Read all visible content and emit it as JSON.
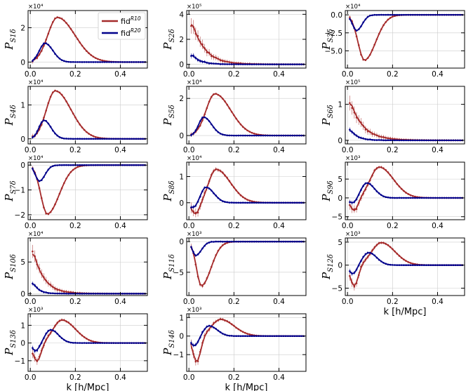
{
  "figure": {
    "xlabel": "k [h/Mpc]",
    "legend": {
      "placement": "top-right of first panel",
      "entries": [
        {
          "name": "fid",
          "sup": "R10",
          "color": "#a52a2a"
        },
        {
          "name": "fid",
          "sup": "R20",
          "color": "#00008b"
        }
      ]
    }
  },
  "chart_data": [
    {
      "type": "line",
      "id": "S1",
      "title": "",
      "ylabel_main": "P",
      "ylabel_sub": "S1δ",
      "exponent": "×10⁴",
      "xlim": [
        -0.01,
        0.52
      ],
      "ylim": [
        -0.35,
        3.0
      ],
      "xticks": [
        0.0,
        0.2,
        0.4
      ],
      "yticks": [
        0,
        2
      ],
      "xticklabels": [
        "0.0",
        "0.2",
        "0.4"
      ],
      "yticklabels": [
        "0",
        "2"
      ],
      "show_xlabel": false,
      "series": [
        {
          "name": "fid R10",
          "color": "#a52a2a",
          "shape": "bump",
          "amp": 2.6,
          "peak": 0.12,
          "wl": 0.06,
          "wr": 0.11,
          "noise": 0.12
        },
        {
          "name": "fid R20",
          "color": "#00008b",
          "shape": "bump",
          "amp": 1.1,
          "peak": 0.065,
          "wl": 0.035,
          "wr": 0.05,
          "noise": 0.08
        }
      ]
    },
    {
      "type": "line",
      "id": "S2",
      "title": "",
      "ylabel_main": "P",
      "ylabel_sub": "S2δ",
      "exponent": "×10⁵",
      "xlim": [
        -0.01,
        0.52
      ],
      "ylim": [
        -0.3,
        4.3
      ],
      "xticks": [
        0.0,
        0.2,
        0.4
      ],
      "yticks": [
        0,
        2,
        4
      ],
      "xticklabels": [
        "0.0",
        "0.2",
        "0.4"
      ],
      "yticklabels": [
        "0",
        "2",
        "4"
      ],
      "show_xlabel": false,
      "series": [
        {
          "name": "fid R10",
          "color": "#a52a2a",
          "shape": "decay",
          "amp": 3.3,
          "peak": 0.015,
          "wl": 0.01,
          "wr": 0.09,
          "noise": 0.6
        },
        {
          "name": "fid R20",
          "color": "#00008b",
          "shape": "decay",
          "amp": 0.75,
          "peak": 0.015,
          "wl": 0.01,
          "wr": 0.06,
          "noise": 0.2
        }
      ]
    },
    {
      "type": "line",
      "id": "S3",
      "title": "",
      "ylabel_main": "P",
      "ylabel_sub": "S3δ",
      "exponent": "×10⁴",
      "xlim": [
        -0.01,
        0.52
      ],
      "ylim": [
        -7.4,
        0.6
      ],
      "xticks": [
        0.0,
        0.2,
        0.4
      ],
      "yticks": [
        0,
        -2.5,
        -5.0
      ],
      "xticklabels": [
        "0.0",
        "0.2",
        "0.4"
      ],
      "yticklabels": [
        "0.0",
        "−2.5",
        "−5.0"
      ],
      "show_xlabel": false,
      "series": [
        {
          "name": "fid R10",
          "color": "#a52a2a",
          "shape": "bump",
          "amp": -6.3,
          "peak": 0.075,
          "wl": 0.04,
          "wr": 0.07,
          "noise": 0.25
        },
        {
          "name": "fid R20",
          "color": "#00008b",
          "shape": "bump",
          "amp": -2.2,
          "peak": 0.04,
          "wl": 0.025,
          "wr": 0.035,
          "noise": 0.15
        }
      ]
    },
    {
      "type": "line",
      "id": "S4",
      "title": "",
      "ylabel_main": "P",
      "ylabel_sub": "S4δ",
      "exponent": "×10⁴",
      "xlim": [
        -0.01,
        0.52
      ],
      "ylim": [
        -0.15,
        1.55
      ],
      "xticks": [
        0.0,
        0.2,
        0.4
      ],
      "yticks": [
        0,
        1
      ],
      "xticklabels": [
        "0.0",
        "0.2",
        "0.4"
      ],
      "yticklabels": [
        "0",
        "1"
      ],
      "show_xlabel": false,
      "series": [
        {
          "name": "fid R10",
          "color": "#a52a2a",
          "shape": "bump",
          "amp": 1.42,
          "peak": 0.11,
          "wl": 0.055,
          "wr": 0.1,
          "noise": 0.07
        },
        {
          "name": "fid R20",
          "color": "#00008b",
          "shape": "bump",
          "amp": 0.55,
          "peak": 0.06,
          "wl": 0.03,
          "wr": 0.045,
          "noise": 0.05
        }
      ]
    },
    {
      "type": "line",
      "id": "S5",
      "title": "",
      "ylabel_main": "P",
      "ylabel_sub": "S5δ",
      "exponent": "×10⁴",
      "xlim": [
        -0.01,
        0.52
      ],
      "ylim": [
        -0.45,
        2.65
      ],
      "xticks": [
        0.0,
        0.2,
        0.4
      ],
      "yticks": [
        0,
        2
      ],
      "xticklabels": [
        "0.0",
        "0.2",
        "0.4"
      ],
      "yticklabels": [
        "0",
        "2"
      ],
      "show_xlabel": false,
      "series": [
        {
          "name": "fid R10",
          "color": "#a52a2a",
          "shape": "bump",
          "amp": 2.25,
          "peak": 0.115,
          "wl": 0.055,
          "wr": 0.1,
          "noise": 0.12
        },
        {
          "name": "fid R20",
          "color": "#00008b",
          "shape": "bump",
          "amp": 1.0,
          "peak": 0.065,
          "wl": 0.03,
          "wr": 0.05,
          "noise": 0.08
        }
      ]
    },
    {
      "type": "line",
      "id": "S6",
      "title": "",
      "ylabel_main": "P",
      "ylabel_sub": "S6δ",
      "exponent": "×10⁵",
      "xlim": [
        -0.01,
        0.52
      ],
      "ylim": [
        -0.1,
        1.5
      ],
      "xticks": [
        0.0,
        0.2,
        0.4
      ],
      "yticks": [
        0,
        1
      ],
      "xticklabels": [
        "0.0",
        "0.2",
        "0.4"
      ],
      "yticklabels": [
        "0",
        "1"
      ],
      "show_xlabel": false,
      "series": [
        {
          "name": "fid R10",
          "color": "#a52a2a",
          "shape": "decay",
          "amp": 1.05,
          "peak": 0.015,
          "wl": 0.01,
          "wr": 0.09,
          "noise": 0.2
        },
        {
          "name": "fid R20",
          "color": "#00008b",
          "shape": "decay",
          "amp": 0.28,
          "peak": 0.015,
          "wl": 0.01,
          "wr": 0.05,
          "noise": 0.06
        }
      ]
    },
    {
      "type": "line",
      "id": "S7",
      "title": "",
      "ylabel_main": "P",
      "ylabel_sub": "S7δ",
      "exponent": "×10⁴",
      "xlim": [
        -0.01,
        0.52
      ],
      "ylim": [
        -2.2,
        0.12
      ],
      "xticks": [
        0.0,
        0.2,
        0.4
      ],
      "yticks": [
        0,
        -1,
        -2
      ],
      "xticklabels": [
        "0.0",
        "0.2",
        "0.4"
      ],
      "yticklabels": [
        "0",
        "−1",
        "−2"
      ],
      "show_xlabel": false,
      "series": [
        {
          "name": "fid R10",
          "color": "#a52a2a",
          "shape": "bump",
          "amp": -1.97,
          "peak": 0.075,
          "wl": 0.04,
          "wr": 0.075,
          "noise": 0.08
        },
        {
          "name": "fid R20",
          "color": "#00008b",
          "shape": "bump",
          "amp": -0.65,
          "peak": 0.04,
          "wl": 0.025,
          "wr": 0.035,
          "noise": 0.05
        }
      ]
    },
    {
      "type": "line",
      "id": "S8",
      "title": "",
      "ylabel_main": "P",
      "ylabel_sub": "S8δ",
      "exponent": "×10⁴",
      "xlim": [
        -0.01,
        0.52
      ],
      "ylim": [
        -0.65,
        1.55
      ],
      "xticks": [
        0.0,
        0.2,
        0.4
      ],
      "yticks": [
        0,
        1
      ],
      "xticklabels": [
        "0.0",
        "0.2",
        "0.4"
      ],
      "yticklabels": [
        "0",
        "1"
      ],
      "show_xlabel": false,
      "series": [
        {
          "name": "fid R10",
          "color": "#a52a2a",
          "shape": "osc",
          "amp": 1.28,
          "peak": 0.12,
          "wl": 0.045,
          "wr": 0.09,
          "dip": -0.45,
          "dipx": 0.03,
          "noise": 0.2
        },
        {
          "name": "fid R20",
          "color": "#00008b",
          "shape": "osc",
          "amp": 0.6,
          "peak": 0.075,
          "wl": 0.03,
          "wr": 0.05,
          "dip": -0.2,
          "dipx": 0.02,
          "noise": 0.08
        }
      ]
    },
    {
      "type": "line",
      "id": "S9",
      "title": "",
      "ylabel_main": "P",
      "ylabel_sub": "S9δ",
      "exponent": "×10³",
      "xlim": [
        -0.01,
        0.52
      ],
      "ylim": [
        -5.8,
        9.5
      ],
      "xticks": [
        0.0,
        0.2,
        0.4
      ],
      "yticks": [
        -5,
        0,
        5
      ],
      "xticklabels": [
        "0.0",
        "0.2",
        "0.4"
      ],
      "yticklabels": [
        "−5",
        "0",
        "5"
      ],
      "show_xlabel": false,
      "series": [
        {
          "name": "fid R10",
          "color": "#a52a2a",
          "shape": "osc",
          "amp": 8.2,
          "peak": 0.14,
          "wl": 0.055,
          "wr": 0.09,
          "dip": -3.5,
          "dipx": 0.03,
          "noise": 1.2
        },
        {
          "name": "fid R20",
          "color": "#00008b",
          "shape": "osc",
          "amp": 4.0,
          "peak": 0.085,
          "wl": 0.035,
          "wr": 0.05,
          "dip": -1.5,
          "dipx": 0.025,
          "noise": 0.6
        }
      ]
    },
    {
      "type": "line",
      "id": "S10",
      "title": "",
      "ylabel_main": "P",
      "ylabel_sub": "S10δ",
      "exponent": "×10⁴",
      "xlim": [
        -0.01,
        0.52
      ],
      "ylim": [
        -0.3,
        8.8
      ],
      "xticks": [
        0.0,
        0.2,
        0.4
      ],
      "yticks": [
        0,
        5
      ],
      "xticklabels": [
        "0.0",
        "0.2",
        "0.4"
      ],
      "yticklabels": [
        "0",
        "5"
      ],
      "show_xlabel": false,
      "series": [
        {
          "name": "fid R10",
          "color": "#a52a2a",
          "shape": "decay",
          "amp": 6.5,
          "peak": 0.015,
          "wl": 0.01,
          "wr": 0.075,
          "noise": 1.0
        },
        {
          "name": "fid R20",
          "color": "#00008b",
          "shape": "decay",
          "amp": 1.6,
          "peak": 0.015,
          "wl": 0.01,
          "wr": 0.04,
          "noise": 0.3
        }
      ]
    },
    {
      "type": "line",
      "id": "S11",
      "title": "",
      "ylabel_main": "P",
      "ylabel_sub": "S11δ",
      "exponent": "×10³",
      "xlim": [
        -0.01,
        0.52
      ],
      "ylim": [
        -8.8,
        0.6
      ],
      "xticks": [
        0.0,
        0.2,
        0.4
      ],
      "yticks": [
        0,
        -5
      ],
      "xticklabels": [
        "0.0",
        "0.2",
        "0.4"
      ],
      "yticklabels": [
        "0",
        "−5"
      ],
      "show_xlabel": false,
      "series": [
        {
          "name": "fid R10",
          "color": "#a52a2a",
          "shape": "bump",
          "amp": -7.2,
          "peak": 0.055,
          "wl": 0.03,
          "wr": 0.06,
          "noise": 0.5
        },
        {
          "name": "fid R20",
          "color": "#00008b",
          "shape": "bump",
          "amp": -2.3,
          "peak": 0.03,
          "wl": 0.02,
          "wr": 0.035,
          "noise": 0.25
        }
      ]
    },
    {
      "type": "line",
      "id": "S12",
      "title": "",
      "ylabel_main": "P",
      "ylabel_sub": "S12δ",
      "exponent": "×10³",
      "xlim": [
        -0.01,
        0.52
      ],
      "ylim": [
        -6.6,
        5.9
      ],
      "xticks": [
        0.0,
        0.2,
        0.4
      ],
      "yticks": [
        -5,
        0,
        5
      ],
      "xticklabels": [
        "0.0",
        "0.2",
        "0.4"
      ],
      "yticklabels": [
        "−5",
        "0",
        "5"
      ],
      "show_xlabel": true,
      "series": [
        {
          "name": "fid R10",
          "color": "#a52a2a",
          "shape": "osc",
          "amp": 4.9,
          "peak": 0.15,
          "wl": 0.06,
          "wr": 0.085,
          "dip": -4.6,
          "dipx": 0.03,
          "noise": 1.0
        },
        {
          "name": "fid R20",
          "color": "#00008b",
          "shape": "osc",
          "amp": 2.7,
          "peak": 0.095,
          "wl": 0.04,
          "wr": 0.05,
          "dip": -2.0,
          "dipx": 0.025,
          "noise": 0.5
        }
      ]
    },
    {
      "type": "line",
      "id": "S13",
      "title": "",
      "ylabel_main": "P",
      "ylabel_sub": "S13δ",
      "exponent": "×10³",
      "xlim": [
        -0.01,
        0.52
      ],
      "ylim": [
        -1.6,
        1.65
      ],
      "xticks": [
        0.0,
        0.2,
        0.4
      ],
      "yticks": [
        -1,
        0,
        1
      ],
      "xticklabels": [
        "0.0",
        "0.2",
        "0.4"
      ],
      "yticklabels": [
        "−1",
        "0",
        "1"
      ],
      "show_xlabel": true,
      "series": [
        {
          "name": "fid R10",
          "color": "#a52a2a",
          "shape": "osc",
          "amp": 1.3,
          "peak": 0.14,
          "wl": 0.055,
          "wr": 0.085,
          "dip": -1.05,
          "dipx": 0.03,
          "noise": 0.25
        },
        {
          "name": "fid R20",
          "color": "#00008b",
          "shape": "osc",
          "amp": 0.75,
          "peak": 0.09,
          "wl": 0.035,
          "wr": 0.05,
          "dip": -0.45,
          "dipx": 0.025,
          "noise": 0.12
        }
      ]
    },
    {
      "type": "line",
      "id": "S14",
      "title": "",
      "ylabel_main": "P",
      "ylabel_sub": "S14δ",
      "exponent": "×10³",
      "xlim": [
        -0.01,
        0.52
      ],
      "ylim": [
        -1.9,
        1.2
      ],
      "xticks": [
        0.0,
        0.2,
        0.4
      ],
      "yticks": [
        -1,
        0,
        1
      ],
      "xticklabels": [
        "0.0",
        "0.2",
        "0.4"
      ],
      "yticklabels": [
        "−1",
        "0",
        "1"
      ],
      "show_xlabel": true,
      "series": [
        {
          "name": "fid R10",
          "color": "#a52a2a",
          "shape": "osc",
          "amp": 0.9,
          "peak": 0.14,
          "wl": 0.055,
          "wr": 0.085,
          "dip": -1.4,
          "dipx": 0.035,
          "noise": 0.25
        },
        {
          "name": "fid R20",
          "color": "#00008b",
          "shape": "osc",
          "amp": 0.55,
          "peak": 0.09,
          "wl": 0.035,
          "wr": 0.05,
          "dip": -0.55,
          "dipx": 0.025,
          "noise": 0.12
        }
      ]
    }
  ]
}
